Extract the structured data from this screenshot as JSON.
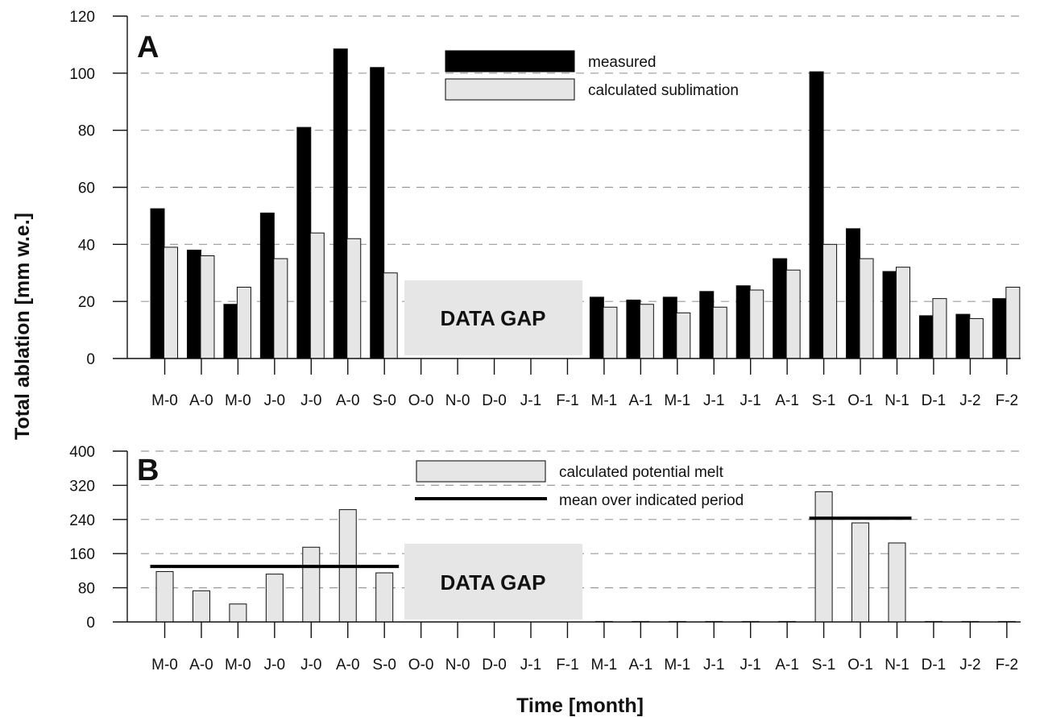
{
  "figure": {
    "ylabel": "Total ablation [mm w.e.]",
    "xlabel": "Time [month]"
  },
  "chart_data": [
    {
      "panel": "A",
      "type": "bar",
      "categories": [
        "M-0",
        "A-0",
        "M-0",
        "J-0",
        "J-0",
        "A-0",
        "S-0",
        "O-0",
        "N-0",
        "D-0",
        "J-1",
        "F-1",
        "M-1",
        "A-1",
        "M-1",
        "J-1",
        "J-1",
        "A-1",
        "S-1",
        "O-1",
        "N-1",
        "D-1",
        "J-2",
        "F-2"
      ],
      "series": [
        {
          "name": "measured",
          "color": "#000000",
          "values": [
            52.5,
            38,
            19,
            51,
            81,
            108.5,
            102,
            null,
            null,
            null,
            null,
            null,
            21.5,
            20.5,
            21.5,
            23.5,
            25.5,
            35,
            100.5,
            45.5,
            30.5,
            15,
            15.5,
            21
          ]
        },
        {
          "name": "calculated sublimation",
          "color": "#e6e6e6",
          "values": [
            39,
            36,
            25,
            35,
            44,
            42,
            30,
            null,
            null,
            null,
            null,
            null,
            18,
            19,
            16,
            18,
            24,
            31,
            40,
            35,
            32,
            21,
            14,
            25
          ]
        }
      ],
      "ylim": [
        0,
        120
      ],
      "yticks": [
        0,
        20,
        40,
        60,
        80,
        100,
        120
      ],
      "grid": true,
      "legend_position": "top-center",
      "annotation": "DATA GAP"
    },
    {
      "panel": "B",
      "type": "bar",
      "categories": [
        "M-0",
        "A-0",
        "M-0",
        "J-0",
        "J-0",
        "A-0",
        "S-0",
        "O-0",
        "N-0",
        "D-0",
        "J-1",
        "F-1",
        "M-1",
        "A-1",
        "M-1",
        "J-1",
        "J-1",
        "A-1",
        "S-1",
        "O-1",
        "N-1",
        "D-1",
        "J-2",
        "F-2"
      ],
      "series": [
        {
          "name": "calculated potential melt",
          "color": "#e6e6e6",
          "values": [
            118,
            73,
            42,
            112,
            175,
            263,
            115,
            null,
            null,
            null,
            null,
            null,
            0,
            0,
            0,
            0,
            0,
            0,
            305,
            232,
            185,
            0,
            0,
            0
          ]
        }
      ],
      "mean_lines": [
        {
          "label": "mean over indicated period",
          "value": 130,
          "from": 0,
          "to": 6
        },
        {
          "label": "mean over indicated period",
          "value": 243,
          "from": 18,
          "to": 20
        }
      ],
      "ylim": [
        0,
        400
      ],
      "yticks": [
        0,
        80,
        160,
        240,
        320,
        400
      ],
      "grid": true,
      "legend_position": "top-center",
      "annotation": "DATA GAP"
    }
  ]
}
